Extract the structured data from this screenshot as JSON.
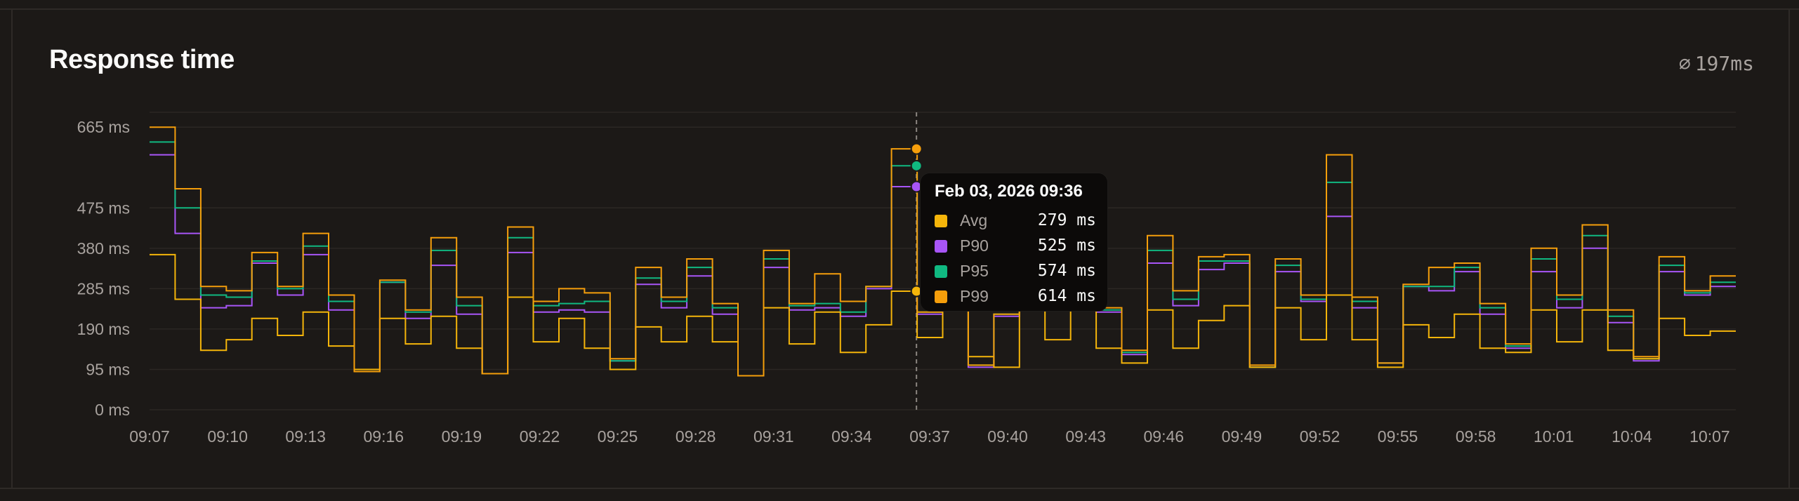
{
  "panel": {
    "title": "Response time",
    "avg_symbol": "⌀",
    "avg_value": "197ms"
  },
  "tooltip": {
    "title": "Feb 03, 2026 09:36",
    "rows": [
      {
        "label": "Avg",
        "value": "279 ms",
        "color": "#f5b50a"
      },
      {
        "label": "P90",
        "value": "525 ms",
        "color": "#a855f7"
      },
      {
        "label": "P95",
        "value": "574 ms",
        "color": "#10b981"
      },
      {
        "label": "P99",
        "value": "614 ms",
        "color": "#f59e0b"
      }
    ]
  },
  "colors": {
    "avg": "#f5b50a",
    "p90": "#a855f7",
    "p95": "#10b981",
    "p99": "#f59e0b",
    "grid": "#2b2724",
    "axis_text": "#a8a29e"
  },
  "chart_data": {
    "type": "line",
    "step": true,
    "title": "Response time",
    "xlabel": "",
    "ylabel": "",
    "ylim": [
      0,
      700
    ],
    "yticks": [
      0,
      95,
      190,
      285,
      380,
      475,
      665
    ],
    "ytick_labels": [
      "0 ms",
      "95 ms",
      "190 ms",
      "285 ms",
      "380 ms",
      "475 ms",
      "665 ms"
    ],
    "x_start": "09:07",
    "x_end": "10:08",
    "xticks": [
      "09:07",
      "09:10",
      "09:13",
      "09:16",
      "09:19",
      "09:22",
      "09:25",
      "09:28",
      "09:31",
      "09:34",
      "09:37",
      "09:40",
      "09:43",
      "09:46",
      "09:49",
      "09:52",
      "09:55",
      "09:58",
      "10:01",
      "10:04",
      "10:07"
    ],
    "hover_time": "09:36",
    "grid": true,
    "legend": "tooltip",
    "series": [
      {
        "name": "Avg",
        "values": [
          365,
          260,
          140,
          165,
          215,
          175,
          230,
          150,
          95,
          215,
          155,
          220,
          145,
          85,
          265,
          160,
          215,
          145,
          95,
          195,
          160,
          220,
          160,
          80,
          240,
          155,
          230,
          135,
          200,
          279,
          170,
          255,
          125,
          100,
          235,
          165,
          245,
          145,
          110,
          235,
          145,
          210,
          245,
          100,
          240,
          165,
          270,
          165,
          100,
          200,
          170,
          225,
          145,
          135,
          235,
          160,
          235,
          140,
          120,
          215,
          175,
          185
        ]
      },
      {
        "name": "P90",
        "values": [
          600,
          415,
          240,
          245,
          345,
          270,
          365,
          235,
          90,
          300,
          215,
          340,
          225,
          85,
          370,
          230,
          235,
          230,
          115,
          295,
          240,
          315,
          225,
          80,
          335,
          235,
          240,
          220,
          285,
          525,
          225,
          240,
          100,
          220,
          235,
          245,
          250,
          230,
          130,
          345,
          245,
          330,
          345,
          100,
          325,
          255,
          455,
          240,
          110,
          290,
          280,
          325,
          225,
          145,
          325,
          240,
          380,
          205,
          115,
          325,
          270,
          290
        ]
      },
      {
        "name": "P95",
        "values": [
          630,
          475,
          270,
          265,
          350,
          285,
          385,
          255,
          90,
          300,
          230,
          375,
          245,
          85,
          405,
          245,
          250,
          255,
          115,
          310,
          255,
          335,
          240,
          80,
          355,
          245,
          250,
          230,
          290,
          574,
          230,
          240,
          105,
          225,
          240,
          250,
          255,
          235,
          135,
          375,
          260,
          350,
          350,
          100,
          340,
          260,
          535,
          255,
          110,
          290,
          290,
          335,
          240,
          150,
          355,
          260,
          410,
          220,
          120,
          340,
          275,
          300
        ]
      },
      {
        "name": "P99",
        "values": [
          665,
          520,
          290,
          280,
          370,
          290,
          415,
          270,
          90,
          305,
          235,
          405,
          265,
          85,
          430,
          255,
          285,
          275,
          120,
          335,
          265,
          355,
          250,
          80,
          375,
          250,
          320,
          255,
          290,
          614,
          230,
          250,
          105,
          225,
          245,
          260,
          270,
          240,
          140,
          410,
          280,
          360,
          365,
          105,
          355,
          270,
          600,
          265,
          110,
          295,
          335,
          345,
          250,
          155,
          380,
          270,
          435,
          235,
          125,
          360,
          280,
          315
        ]
      }
    ]
  }
}
